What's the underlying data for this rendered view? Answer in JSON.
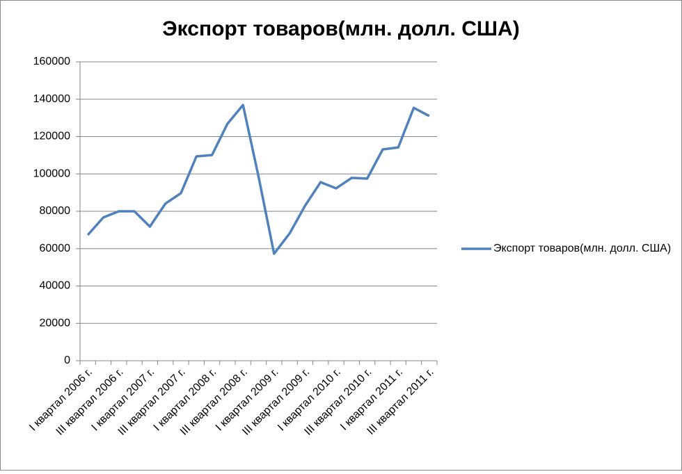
{
  "chart_data": {
    "type": "line",
    "title": "Экспорт товаров(млн. долл. США)",
    "categories": [
      "I квартал 2006 г.",
      null,
      "III квартал 2006 г.",
      null,
      "I квартал 2007 г.",
      null,
      "III квартал 2007 г.",
      null,
      "I квартал 2008 г.",
      null,
      "III квартал 2008 г.",
      null,
      "I квартал 2009 г.",
      null,
      "III квартал 2009 г.",
      null,
      "I квартал 2010 г.",
      null,
      "III квартал 2010 г.",
      null,
      "I квартал 2011 г.",
      null,
      "III квартал 2011 г."
    ],
    "series": [
      {
        "name": "Экспорт товаров(млн. долл. США)",
        "color": "#4f81bd",
        "values": [
          67300,
          76700,
          80000,
          80000,
          71800,
          84100,
          89700,
          109400,
          110100,
          126900,
          136900,
          98600,
          57300,
          68100,
          83000,
          95600,
          92300,
          97900,
          97500,
          113100,
          114200,
          135400,
          131000
        ]
      }
    ],
    "ylim": [
      0,
      160000
    ],
    "yticks": [
      0,
      20000,
      40000,
      60000,
      80000,
      100000,
      120000,
      140000,
      160000
    ],
    "grid": true,
    "legend": "right"
  }
}
